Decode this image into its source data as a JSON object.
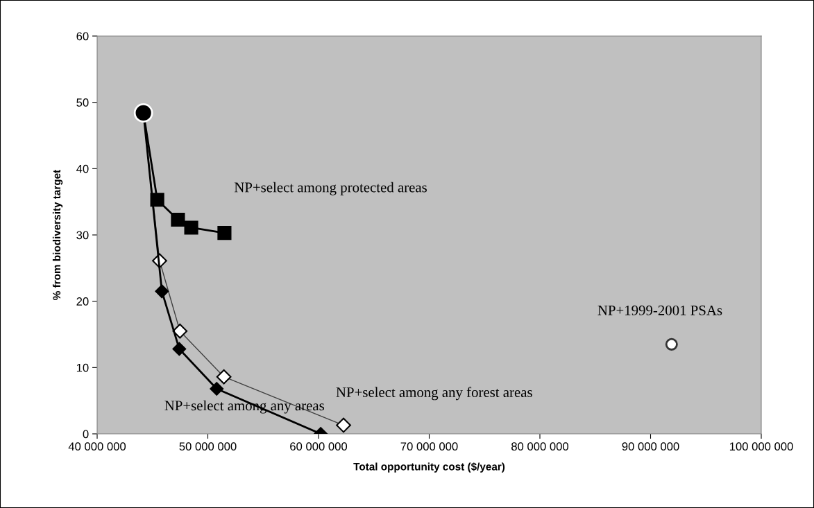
{
  "chart_data": {
    "type": "line",
    "xlabel": "Total opportunity cost ($/year)",
    "ylabel": "% from biodiversity target",
    "series": [
      {
        "color": "#000000",
        "marker": "square",
        "x": [
          44180000,
          45430000,
          47300000,
          48500000,
          51500000
        ],
        "values": [
          48.4,
          35.3,
          32.3,
          31.1,
          30.3
        ]
      },
      {
        "color": "#ffffff",
        "marker": "diamond",
        "x": [
          44180000,
          45640000,
          47480000,
          51450000,
          62260000
        ],
        "values": [
          48.4,
          26.1,
          15.5,
          8.6,
          1.3
        ]
      },
      {
        "color": "#000000",
        "marker": "diamond",
        "x": [
          44180000,
          45850000,
          47420000,
          50800000,
          60200000
        ],
        "values": [
          48.4,
          21.5,
          12.8,
          6.8,
          0
        ]
      },
      {
        "type": "scatter",
        "color": "#000000",
        "marker": "circle",
        "x": [
          44180000
        ],
        "values": [
          48.4
        ]
      },
      {
        "type": "scatter",
        "color": "#ffffff",
        "marker": "circle",
        "x": [
          91900000
        ],
        "values": [
          13.5
        ]
      }
    ],
    "annotations": [
      {
        "text": "NP+select among protected areas",
        "x": 51500000,
        "y": 30.3
      },
      {
        "text": "NP+select among any forest areas",
        "x": 62260000,
        "y": 1.3
      },
      {
        "text": "NP+select among any areas",
        "x": 60200000,
        "y": 0
      },
      {
        "text": "NP+1999-2001 PSAs",
        "x": 91900000,
        "y": 13.5
      }
    ],
    "xlim": [
      40000000,
      100000000
    ],
    "xticks": [
      {
        "value": 40000000,
        "label": "40 000 000"
      },
      {
        "value": 50000000,
        "label": "50 000 000"
      },
      {
        "value": 60000000,
        "label": "60 000 000"
      },
      {
        "value": 70000000,
        "label": "70 000 000"
      },
      {
        "value": 80000000,
        "label": "80 000 000"
      },
      {
        "value": 90000000,
        "label": "90 000 000"
      },
      {
        "value": 100000000,
        "label": "100 000 000"
      }
    ],
    "ylim": [
      0,
      60
    ],
    "yticks": [
      0,
      10,
      20,
      30,
      40,
      50,
      60
    ],
    "grid": false,
    "legend": false
  }
}
